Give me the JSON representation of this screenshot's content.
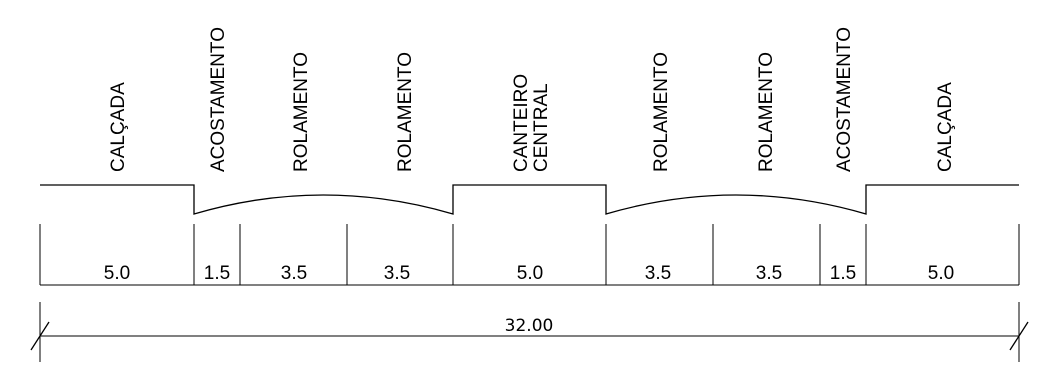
{
  "cross_section": {
    "zones": [
      {
        "label": "CALÇADA",
        "width": "5.0"
      },
      {
        "label": "ACOSTAMENTO",
        "width": "1.5"
      },
      {
        "label": "ROLAMENTO",
        "width": "3.5"
      },
      {
        "label": "ROLAMENTO",
        "width": "3.5"
      },
      {
        "label_line1": "CANTEIRO",
        "label_line2": "CENTRAL",
        "width": "5.0"
      },
      {
        "label": "ROLAMENTO",
        "width": "3.5"
      },
      {
        "label": "ROLAMENTO",
        "width": "3.5"
      },
      {
        "label": "ACOSTAMENTO",
        "width": "1.5"
      },
      {
        "label": "CALÇADA",
        "width": "5.0"
      }
    ],
    "total_width": "32.00"
  }
}
